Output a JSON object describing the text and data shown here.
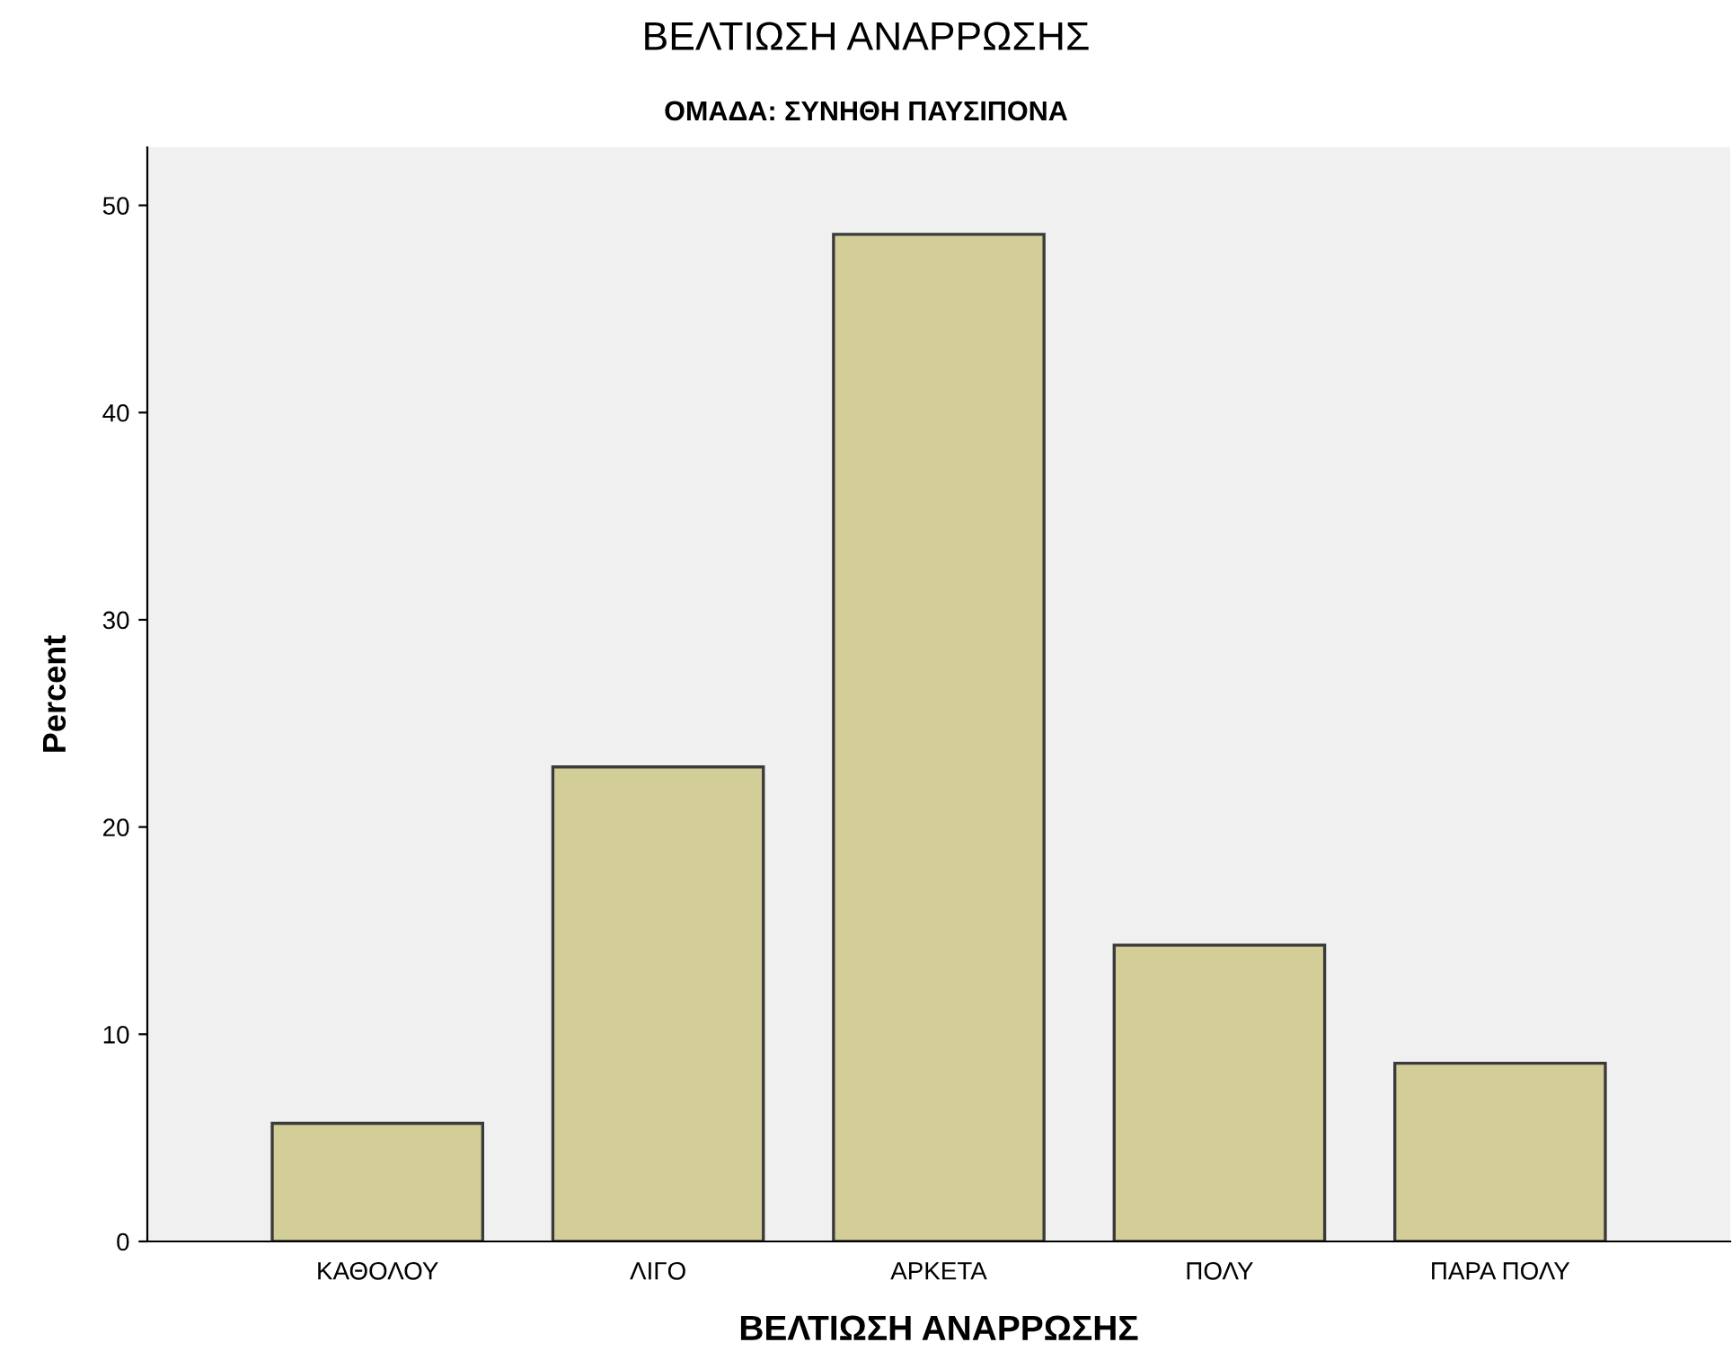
{
  "chart_data": {
    "type": "bar",
    "title": "ΒΕΛΤΙΩΣΗ ΑΝΑΡΡΩΣΗΣ",
    "subtitle": "ΟΜΑΔΑ: ΣΥΝΗΘΗ ΠΑΥΣΙΠΟΝΑ",
    "xlabel": "ΒΕΛΤΙΩΣΗ ΑΝΑΡΡΩΣΗΣ",
    "ylabel": "Percent",
    "categories": [
      "ΚΑΘΟΛΟΥ",
      "ΛΙΓΟ",
      "ΑΡΚΕΤΑ",
      "ΠΟΛΥ",
      "ΠΑΡΑ ΠΟΛΥ"
    ],
    "values": [
      5.7,
      22.9,
      48.6,
      14.3,
      8.6
    ],
    "color": "#d3ce98",
    "ylim": [
      0,
      52.8
    ],
    "yticks": [
      0,
      10,
      20,
      30,
      40,
      50
    ],
    "grid": false
  }
}
